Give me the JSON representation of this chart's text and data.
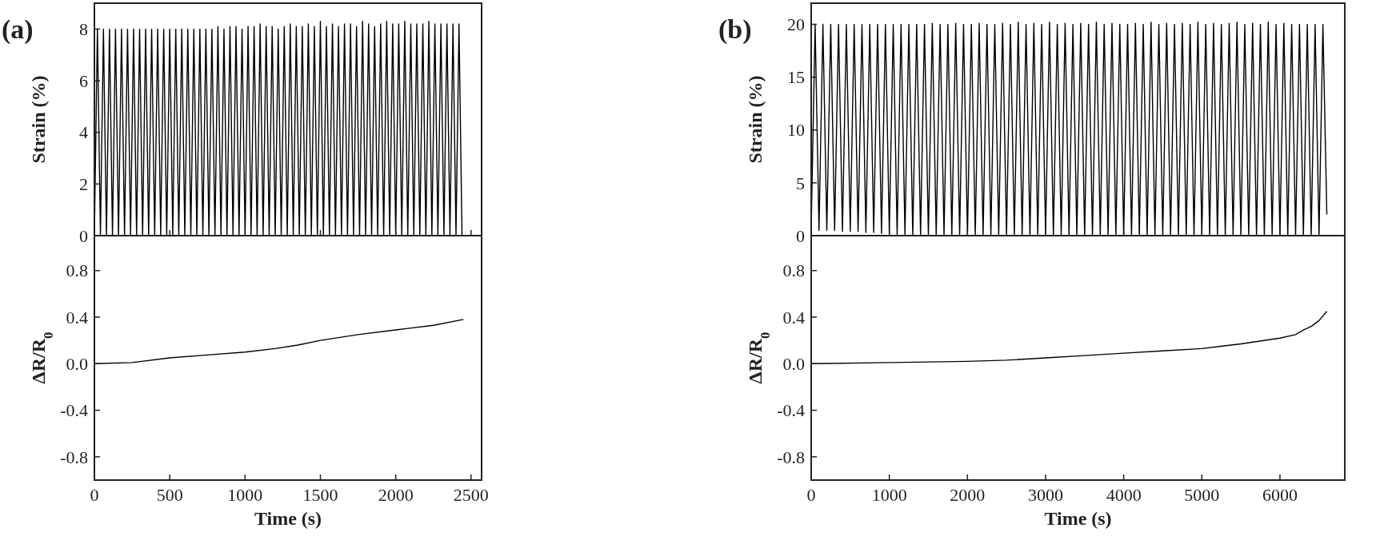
{
  "chart_data": [
    {
      "type": "line",
      "annotations": [
        "(a)"
      ],
      "ylabel": "Strain (%)",
      "xlim": [
        0,
        2570
      ],
      "xticks": [
        0,
        500,
        1000,
        1500,
        2000,
        2500
      ],
      "ylim": [
        0,
        9
      ],
      "yticks": [
        0,
        2,
        4,
        6,
        8
      ],
      "tick_labels": "y",
      "x": [
        0,
        20,
        40,
        60,
        80,
        100,
        120,
        140,
        160,
        180,
        200,
        220,
        240,
        260,
        280,
        300,
        320,
        340,
        360,
        380,
        400,
        420,
        440,
        460,
        480,
        500,
        520,
        540,
        560,
        580,
        600,
        620,
        640,
        660,
        680,
        700,
        720,
        740,
        760,
        780,
        800,
        820,
        840,
        860,
        880,
        900,
        920,
        940,
        960,
        980,
        1000,
        1020,
        1040,
        1060,
        1080,
        1100,
        1120,
        1140,
        1160,
        1180,
        1200,
        1220,
        1240,
        1260,
        1280,
        1300,
        1320,
        1340,
        1360,
        1380,
        1400,
        1420,
        1440,
        1460,
        1480,
        1500,
        1520,
        1540,
        1560,
        1580,
        1600,
        1620,
        1640,
        1660,
        1680,
        1700,
        1720,
        1740,
        1760,
        1780,
        1800,
        1820,
        1840,
        1860,
        1880,
        1900,
        1920,
        1940,
        1960,
        1980,
        2000,
        2020,
        2040,
        2060,
        2080,
        2100,
        2120,
        2140,
        2160,
        2180,
        2200,
        2220,
        2240,
        2260,
        2280,
        2300,
        2320,
        2340,
        2360,
        2380,
        2400,
        2420,
        2440
      ],
      "series": [
        {
          "color": "#000000",
          "values": [
            0,
            8.0,
            0,
            8.0,
            0,
            8.0,
            0,
            8.0,
            0,
            8.0,
            0,
            8.0,
            0,
            8.0,
            0,
            8.0,
            0,
            8.0,
            0,
            8.0,
            0,
            8.0,
            0,
            8.0,
            0,
            8.0,
            0,
            8.0,
            0,
            8.0,
            0,
            8.0,
            0,
            8.0,
            0,
            8.0,
            0,
            8.0,
            0,
            8.0,
            0,
            8.1,
            0,
            8.0,
            0,
            8.1,
            0,
            8.1,
            0,
            8.0,
            0,
            8.1,
            0,
            8.1,
            0,
            8.2,
            0,
            8.1,
            0,
            8.1,
            0,
            8.0,
            0,
            8.1,
            0,
            8.2,
            0,
            8.1,
            0,
            8.1,
            0,
            8.2,
            0,
            8.1,
            0,
            8.3,
            0,
            8.1,
            0,
            8.2,
            0,
            8.1,
            0,
            8.2,
            0,
            8.2,
            0,
            8.1,
            0,
            8.3,
            0,
            8.2,
            0,
            8.1,
            0,
            8.2,
            0,
            8.3,
            0,
            8.2,
            0,
            8.2,
            0,
            8.3,
            0,
            8.2,
            0,
            8.2,
            0,
            8.2,
            0,
            8.3,
            0,
            8.2,
            0,
            8.2,
            0,
            8.2,
            0,
            8.2,
            0,
            8.2,
            0
          ]
        }
      ]
    },
    {
      "type": "line",
      "xlabel": "Time (s)",
      "ylabel": "ΔR/R$_{0}$",
      "xlim": [
        0,
        2570
      ],
      "xticks": [
        0,
        500,
        1000,
        1500,
        2000,
        2500
      ],
      "ylim": [
        -1.0,
        1.1
      ],
      "yticks": [
        {
          "value": -0.8,
          "label": "-0.8"
        },
        {
          "value": -0.4,
          "label": "-0.4"
        },
        {
          "value": 0,
          "label": "0.0"
        },
        {
          "value": 0.4,
          "label": "0.4"
        },
        {
          "value": 0.8,
          "label": "0.8"
        }
      ],
      "x": [
        0,
        250,
        500,
        750,
        1000,
        1200,
        1350,
        1500,
        1750,
        2000,
        2250,
        2450
      ],
      "series": [
        {
          "color": "#000000",
          "values": [
            0,
            0.01,
            0.05,
            0.075,
            0.1,
            0.13,
            0.16,
            0.2,
            0.25,
            0.29,
            0.33,
            0.38
          ]
        }
      ]
    },
    {
      "type": "line",
      "annotations": [
        "(b)"
      ],
      "ylabel": "Strain (%)",
      "xlim": [
        0,
        6830
      ],
      "xticks": [
        0,
        1000,
        2000,
        3000,
        4000,
        5000,
        6000
      ],
      "ylim": [
        0,
        22
      ],
      "yticks": [
        0,
        5,
        10,
        15,
        20
      ],
      "tick_labels": "y",
      "x": [
        0,
        50,
        100,
        150,
        200,
        250,
        300,
        350,
        400,
        450,
        500,
        550,
        600,
        650,
        700,
        750,
        800,
        850,
        900,
        950,
        1000,
        1050,
        1100,
        1150,
        1200,
        1250,
        1300,
        1350,
        1400,
        1450,
        1500,
        1550,
        1600,
        1650,
        1700,
        1750,
        1800,
        1850,
        1900,
        1950,
        2000,
        2050,
        2100,
        2150,
        2200,
        2250,
        2300,
        2350,
        2400,
        2450,
        2500,
        2550,
        2600,
        2650,
        2700,
        2750,
        2800,
        2850,
        2900,
        2950,
        3000,
        3050,
        3100,
        3150,
        3200,
        3250,
        3300,
        3350,
        3400,
        3450,
        3500,
        3550,
        3600,
        3650,
        3700,
        3750,
        3800,
        3850,
        3900,
        3950,
        4000,
        4050,
        4100,
        4150,
        4200,
        4250,
        4300,
        4350,
        4400,
        4450,
        4500,
        4550,
        4600,
        4650,
        4700,
        4750,
        4800,
        4850,
        4900,
        4950,
        5000,
        5050,
        5100,
        5150,
        5200,
        5250,
        5300,
        5350,
        5400,
        5450,
        5500,
        5550,
        5600,
        5650,
        5700,
        5750,
        5800,
        5850,
        5900,
        5950,
        6000,
        6050,
        6100,
        6150,
        6200,
        6250,
        6300,
        6350,
        6400,
        6450,
        6500,
        6550,
        6600
      ],
      "series": [
        {
          "color": "#000000",
          "values": [
            0.6,
            20.0,
            0.5,
            20.0,
            0.5,
            20.0,
            0.5,
            20.0,
            0.4,
            20.0,
            0.4,
            20.0,
            0.4,
            20.0,
            0.3,
            20.0,
            0.3,
            20.0,
            0.2,
            20.0,
            0.2,
            20.0,
            0.1,
            20.0,
            0.1,
            20.0,
            0,
            20.0,
            0,
            20.0,
            0,
            20.1,
            0,
            20.0,
            0,
            20.0,
            0,
            20.1,
            0,
            20.0,
            0,
            20.0,
            0,
            20.1,
            0,
            20.0,
            0,
            20.0,
            0,
            20.1,
            0,
            20.0,
            0,
            20.2,
            0,
            20.0,
            0,
            20.1,
            0,
            20.0,
            0,
            20.2,
            0,
            20.0,
            0,
            20.1,
            0,
            20.0,
            0,
            20.1,
            0,
            20.0,
            0,
            20.2,
            0,
            20.0,
            0,
            20.1,
            0,
            20.0,
            0,
            20.0,
            0,
            20.1,
            0,
            20.0,
            0,
            20.2,
            0,
            20.0,
            0,
            20.1,
            0,
            20.0,
            0,
            20.1,
            0,
            20.0,
            0,
            20.2,
            0,
            20.0,
            0,
            20.1,
            0,
            20.0,
            0,
            20.1,
            0,
            20.2,
            0,
            20.0,
            0,
            20.1,
            0,
            20.0,
            0,
            20.2,
            0,
            20.0,
            0,
            20.1,
            0,
            20.0,
            0,
            20.0,
            0,
            20.0,
            0,
            20.0,
            0,
            20.0,
            2.0
          ]
        }
      ]
    },
    {
      "type": "line",
      "xlabel": "Time (s)",
      "ylabel": "ΔR/R$_{0}$",
      "xlim": [
        0,
        6830
      ],
      "xticks": [
        0,
        1000,
        2000,
        3000,
        4000,
        5000,
        6000
      ],
      "ylim": [
        -1.0,
        1.1
      ],
      "yticks": [
        {
          "value": -0.8,
          "label": "-0.8"
        },
        {
          "value": -0.4,
          "label": "-0.4"
        },
        {
          "value": 0,
          "label": "0.0"
        },
        {
          "value": 0.4,
          "label": "0.4"
        },
        {
          "value": 0.8,
          "label": "0.8"
        }
      ],
      "x": [
        0,
        1000,
        2000,
        2500,
        3000,
        3500,
        4000,
        4500,
        5000,
        5500,
        6000,
        6200,
        6300,
        6400,
        6500,
        6600
      ],
      "series": [
        {
          "color": "#000000",
          "values": [
            0,
            0.01,
            0.02,
            0.03,
            0.05,
            0.07,
            0.09,
            0.11,
            0.13,
            0.17,
            0.22,
            0.25,
            0.29,
            0.32,
            0.37,
            0.45
          ]
        }
      ]
    }
  ]
}
